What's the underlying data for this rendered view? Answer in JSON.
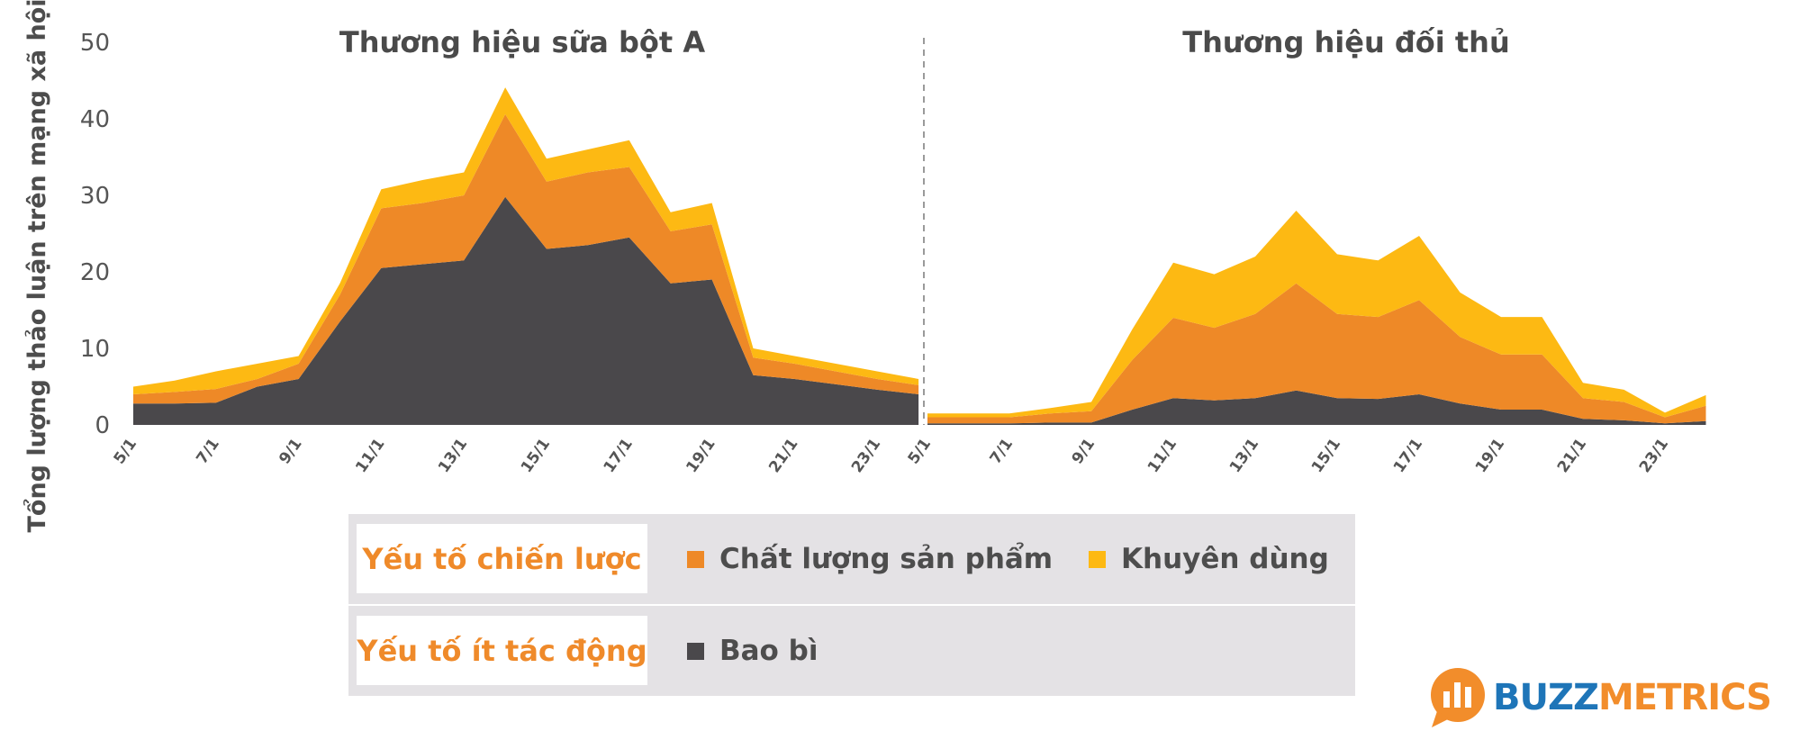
{
  "colors": {
    "dark": "#4a484b",
    "orange": "#ee8927",
    "yellow": "#fdb913",
    "accent_text": "#ef8a2a",
    "logo_blue": "#1e75b8"
  },
  "y_axis_label": "Tổng lượng thảo luận trên mạng xã hội",
  "chart_data": [
    {
      "type": "area",
      "stacked": true,
      "title": "Thương hiệu sữa bột A",
      "x": [
        "5/1",
        "6/1",
        "7/1",
        "8/1",
        "9/1",
        "10/1",
        "11/1",
        "12/1",
        "13/1",
        "14/1",
        "15/1",
        "16/1",
        "17/1",
        "18/1",
        "19/1",
        "20/1",
        "21/1",
        "22/1",
        "23/1",
        "24/1"
      ],
      "x_tick_labels": [
        "5/1",
        "7/1",
        "9/1",
        "11/1",
        "13/1",
        "15/1",
        "17/1",
        "19/1",
        "21/1",
        "23/1"
      ],
      "ylim": [
        0,
        50
      ],
      "y_ticks": [
        0,
        10,
        20,
        30,
        40,
        50
      ],
      "series": [
        {
          "name": "Bao bì",
          "color": "#4a484b",
          "values": [
            2.8,
            2.8,
            2.9,
            5.0,
            6.0,
            13.5,
            20.5,
            21.0,
            21.5,
            29.8,
            23.0,
            23.5,
            24.5,
            18.5,
            19.0,
            6.5,
            6.0,
            5.3,
            4.6,
            4.0
          ]
        },
        {
          "name": "Chất lượng sản phẩm",
          "color": "#ee8927",
          "values": [
            1.2,
            1.5,
            1.8,
            1.0,
            2.0,
            3.5,
            7.8,
            8.0,
            8.5,
            10.8,
            8.8,
            9.5,
            9.2,
            6.8,
            7.2,
            2.3,
            2.0,
            1.7,
            1.4,
            1.2
          ]
        },
        {
          "name": "Khuyên dùng",
          "color": "#fdb913",
          "values": [
            1.0,
            1.5,
            2.3,
            2.0,
            1.0,
            1.5,
            2.5,
            3.0,
            3.0,
            3.5,
            3.0,
            3.0,
            3.5,
            2.5,
            2.8,
            1.2,
            1.0,
            1.0,
            1.0,
            0.8
          ]
        }
      ]
    },
    {
      "type": "area",
      "stacked": true,
      "title": "Thương hiệu đối thủ",
      "x": [
        "5/1",
        "6/1",
        "7/1",
        "8/1",
        "9/1",
        "10/1",
        "11/1",
        "12/1",
        "13/1",
        "14/1",
        "15/1",
        "16/1",
        "17/1",
        "18/1",
        "19/1",
        "20/1",
        "21/1",
        "22/1",
        "23/1",
        "24/1"
      ],
      "x_tick_labels": [
        "5/1",
        "7/1",
        "9/1",
        "11/1",
        "13/1",
        "15/1",
        "17/1",
        "19/1",
        "21/1",
        "23/1"
      ],
      "ylim": [
        0,
        50
      ],
      "y_ticks": [
        0,
        10,
        20,
        30,
        40,
        50
      ],
      "series": [
        {
          "name": "Bao bì",
          "color": "#4a484b",
          "values": [
            0.2,
            0.2,
            0.2,
            0.3,
            0.3,
            2.0,
            3.5,
            3.2,
            3.5,
            4.5,
            3.5,
            3.4,
            4.0,
            2.8,
            2.0,
            2.0,
            0.8,
            0.6,
            0.2,
            0.5
          ]
        },
        {
          "name": "Chất lượng sản phẩm",
          "color": "#ee8927",
          "values": [
            0.8,
            0.8,
            0.8,
            1.2,
            1.5,
            6.5,
            10.5,
            9.5,
            11.0,
            14.0,
            11.0,
            10.7,
            12.3,
            8.7,
            7.2,
            7.2,
            2.7,
            2.4,
            0.8,
            2.0
          ]
        },
        {
          "name": "Khuyên dùng",
          "color": "#fdb913",
          "values": [
            0.5,
            0.5,
            0.5,
            0.7,
            1.2,
            4.0,
            7.2,
            7.0,
            7.5,
            9.5,
            7.8,
            7.4,
            8.4,
            5.8,
            4.9,
            4.9,
            2.0,
            1.6,
            0.6,
            1.4
          ]
        }
      ]
    }
  ],
  "legend": {
    "row1": {
      "category": "Yếu tố chiến lược",
      "items": [
        "Chất lượng sản phẩm",
        "Khuyên dùng"
      ]
    },
    "row2": {
      "category": "Yếu tố ít tác động",
      "items": [
        "Bao bì"
      ]
    }
  },
  "logo": {
    "part1": "BUZZ",
    "part2": "METRICS"
  }
}
